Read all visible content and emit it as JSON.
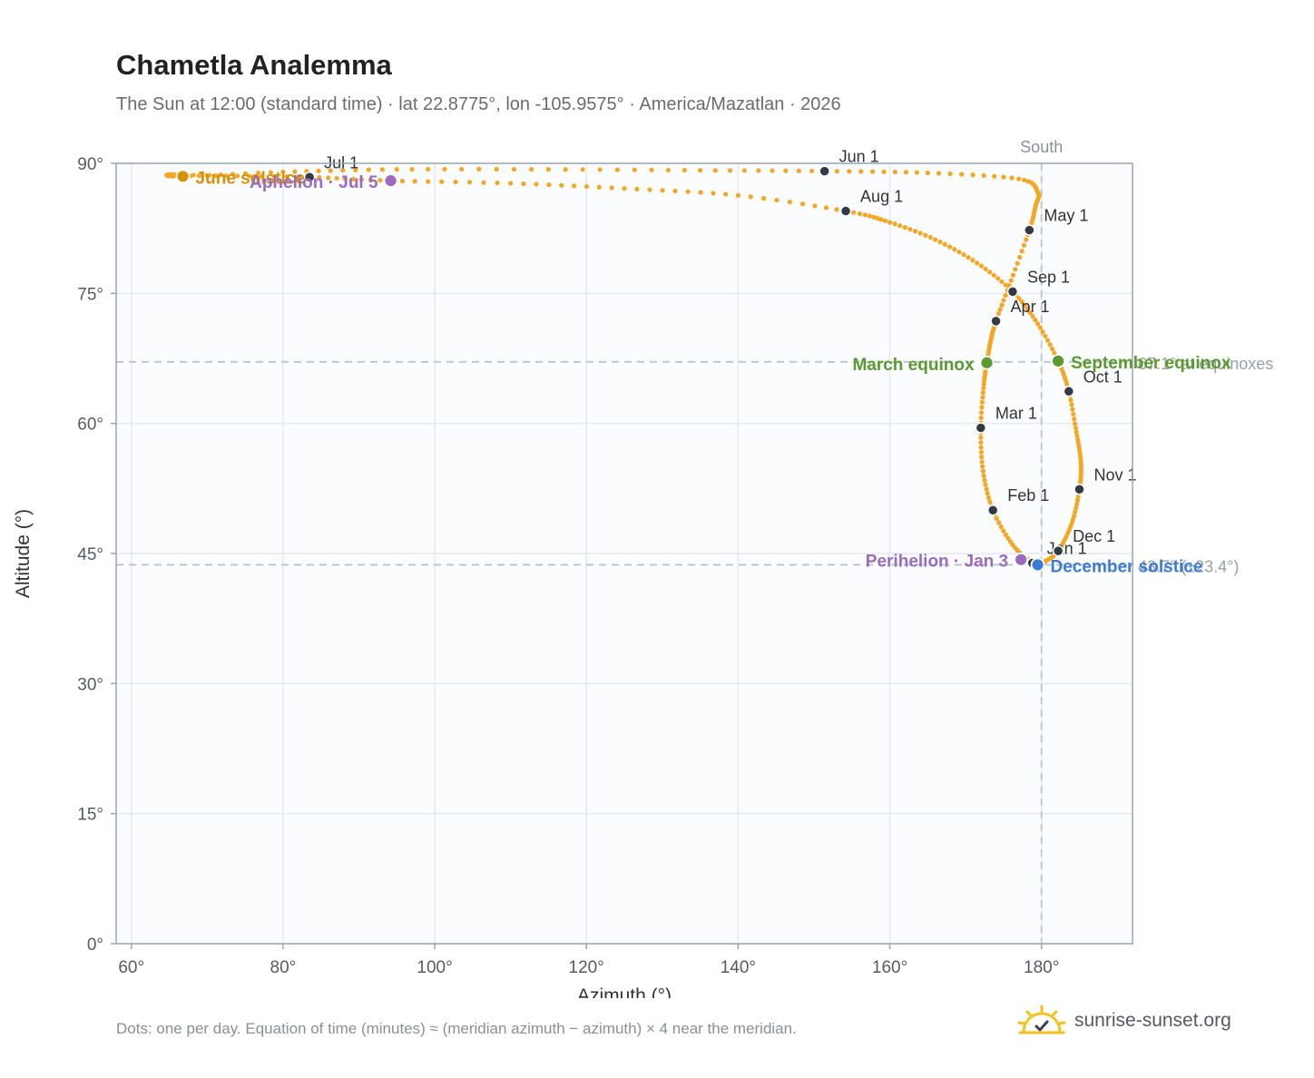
{
  "header": {
    "title": "Chametla Analemma",
    "subtitle": "The Sun at 12:00 (standard time) · lat 22.8775°, lon -105.9575° · America/Mazatlan · 2026"
  },
  "footer": {
    "note": "Dots: one per day. Equation of time (minutes) ≈ (meridian azimuth − azimuth) × 4 near the meridian.",
    "brand": "sunrise-sunset.org",
    "brand_icon": "sun-logo-icon"
  },
  "colors": {
    "curve": "#f5a623",
    "month_marker": "#333a45",
    "solstice_june": "#d4920a",
    "solstice_december": "#3a7bd5",
    "equinox": "#5a9a2e",
    "apsis": "#9b6bbf",
    "reference_line": "#b9c4d0",
    "plot_background": "#fafcfe",
    "grid": "#e5eaf0",
    "axis": "#9aa6b5"
  },
  "chart_data": {
    "type": "scatter",
    "xlabel": "Azimuth (°)",
    "ylabel": "Altitude (°)",
    "xlim": [
      58,
      192
    ],
    "ylim": [
      0,
      90
    ],
    "x_ticks": [
      60,
      80,
      100,
      120,
      140,
      160,
      180
    ],
    "y_ticks": [
      0,
      15,
      30,
      45,
      60,
      75,
      90
    ],
    "tick_suffix": "°",
    "grid": true,
    "meridian": {
      "azimuth": 180,
      "label": "South"
    },
    "reference_lines": [
      {
        "altitude": 67.1,
        "label": "67.1° at equinoxes"
      },
      {
        "altitude": 43.7,
        "label": "43.7° (±23.4°)"
      }
    ],
    "month_markers": [
      {
        "label": "Jan 1",
        "azimuth": 178.8,
        "altitude": 43.9
      },
      {
        "label": "Feb 1",
        "azimuth": 173.6,
        "altitude": 50.0
      },
      {
        "label": "Mar 1",
        "azimuth": 172.0,
        "altitude": 59.5
      },
      {
        "label": "Apr 1",
        "azimuth": 174.0,
        "altitude": 71.8
      },
      {
        "label": "May 1",
        "azimuth": 178.4,
        "altitude": 82.3
      },
      {
        "label": "Jun 1",
        "azimuth": 151.4,
        "altitude": 89.1
      },
      {
        "label": "Jul 1",
        "azimuth": 83.5,
        "altitude": 88.4
      },
      {
        "label": "Aug 1",
        "azimuth": 154.2,
        "altitude": 84.5
      },
      {
        "label": "Sep 1",
        "azimuth": 176.2,
        "altitude": 75.2
      },
      {
        "label": "Oct 1",
        "azimuth": 183.6,
        "altitude": 63.7
      },
      {
        "label": "Nov 1",
        "azimuth": 185.0,
        "altitude": 52.4
      },
      {
        "label": "Dec 1",
        "azimuth": 182.2,
        "altitude": 45.3
      }
    ],
    "events": [
      {
        "label": "June solstice",
        "azimuth": 66.8,
        "altitude": 88.5,
        "kind": "solstice_june"
      },
      {
        "label": "December solstice",
        "azimuth": 179.5,
        "altitude": 43.7,
        "kind": "solstice_december"
      },
      {
        "label": "March equinox",
        "azimuth": 172.8,
        "altitude": 67.0,
        "kind": "equinox"
      },
      {
        "label": "September equinox",
        "azimuth": 182.2,
        "altitude": 67.2,
        "kind": "equinox"
      },
      {
        "label": "Perihelion · Jan 3",
        "azimuth": 177.3,
        "altitude": 44.3,
        "kind": "apsis"
      },
      {
        "label": "Aphelion · Jul 5",
        "azimuth": 94.2,
        "altitude": 88.0,
        "kind": "apsis"
      }
    ],
    "daily_path_anchors": [
      [
        178.8,
        43.9
      ],
      [
        176.2,
        46.0
      ],
      [
        173.6,
        50.0
      ],
      [
        172.3,
        54.5
      ],
      [
        172.0,
        59.5
      ],
      [
        172.4,
        64.5
      ],
      [
        172.8,
        67.0
      ],
      [
        173.3,
        69.5
      ],
      [
        174.0,
        71.8
      ],
      [
        176.0,
        76.5
      ],
      [
        178.4,
        82.3
      ],
      [
        179.2,
        85.0
      ],
      [
        179.5,
        86.7
      ],
      [
        177.0,
        88.2
      ],
      [
        165.0,
        88.9
      ],
      [
        151.4,
        89.1
      ],
      [
        135.0,
        89.2
      ],
      [
        115.0,
        89.3
      ],
      [
        95.0,
        89.3
      ],
      [
        80.0,
        89.0
      ],
      [
        66.8,
        88.5
      ],
      [
        65.0,
        88.7
      ],
      [
        70.0,
        88.6
      ],
      [
        83.5,
        88.4
      ],
      [
        94.2,
        88.0
      ],
      [
        110.0,
        87.7
      ],
      [
        125.0,
        87.1
      ],
      [
        140.0,
        86.3
      ],
      [
        154.2,
        84.5
      ],
      [
        160.0,
        83.2
      ],
      [
        166.0,
        81.2
      ],
      [
        171.5,
        78.5
      ],
      [
        176.2,
        75.2
      ],
      [
        179.5,
        71.5
      ],
      [
        182.2,
        67.2
      ],
      [
        183.6,
        63.7
      ],
      [
        184.6,
        59.0
      ],
      [
        185.2,
        55.5
      ],
      [
        185.0,
        52.4
      ],
      [
        184.0,
        48.5
      ],
      [
        182.2,
        45.3
      ],
      [
        180.5,
        44.1
      ],
      [
        179.5,
        43.7
      ],
      [
        178.8,
        43.9
      ]
    ]
  }
}
